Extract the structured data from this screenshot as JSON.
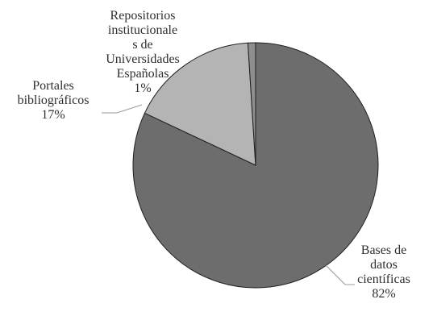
{
  "chart_data": {
    "type": "pie",
    "title": "",
    "slices": [
      {
        "label": "Bases de\ndatos\ncientíficas\n82%",
        "value": 82,
        "color": "#6d6d6d"
      },
      {
        "label": "Portales\nbibliográficos\n17%",
        "value": 17,
        "color": "#b4b4b4"
      },
      {
        "label": "Repositorios\ninstitucionale\ns de\nUniversidades\nEspañolas\n1%",
        "value": 1,
        "color": "#8e8e8e"
      }
    ],
    "legend": "none"
  }
}
